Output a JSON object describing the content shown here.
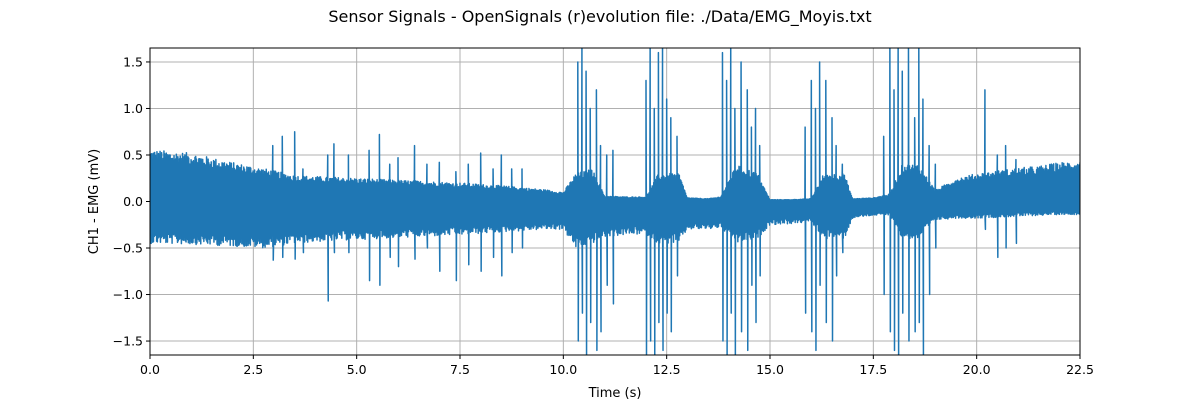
{
  "chart_data": {
    "type": "line",
    "title": "Sensor Signals - OpenSignals (r)evolution file: ./Data/EMG_Moyis.txt",
    "xlabel": "Time (s)",
    "ylabel": "CH1 - EMG (mV)",
    "xlim": [
      0.0,
      22.5
    ],
    "ylim": [
      -1.65,
      1.65
    ],
    "grid": true,
    "x_ticks": [
      0.0,
      2.5,
      5.0,
      7.5,
      10.0,
      12.5,
      15.0,
      17.5,
      20.0,
      22.5
    ],
    "x_tick_labels": [
      "0.0",
      "2.5",
      "5.0",
      "7.5",
      "10.0",
      "12.5",
      "15.0",
      "17.5",
      "20.0",
      "22.5"
    ],
    "y_ticks": [
      -1.5,
      -1.0,
      -0.5,
      0.0,
      0.5,
      1.0,
      1.5
    ],
    "y_tick_labels": [
      "−1.5",
      "−1.0",
      "−0.5",
      "0.0",
      "0.5",
      "1.0",
      "1.5"
    ],
    "series": [
      {
        "color": "#1f77b4",
        "envelope_time": [
          0.0,
          1.0,
          2.0,
          2.8,
          3.5,
          4.5,
          5.5,
          6.5,
          7.5,
          8.5,
          9.5,
          10.0,
          10.3,
          10.7,
          11.0,
          11.5,
          12.0,
          12.3,
          12.8,
          13.0,
          13.5,
          13.8,
          14.2,
          14.7,
          15.0,
          15.5,
          16.0,
          16.3,
          16.8,
          17.0,
          17.5,
          17.9,
          18.2,
          18.6,
          19.0,
          19.5,
          20.0,
          20.5,
          21.0,
          21.5,
          22.0,
          22.5
        ],
        "envelope_max": [
          0.56,
          0.52,
          0.42,
          0.35,
          0.28,
          0.26,
          0.24,
          0.22,
          0.2,
          0.17,
          0.13,
          0.1,
          0.3,
          0.35,
          0.06,
          0.05,
          0.05,
          0.3,
          0.3,
          0.04,
          0.03,
          0.05,
          0.4,
          0.3,
          0.02,
          0.02,
          0.03,
          0.3,
          0.3,
          0.03,
          0.04,
          0.08,
          0.4,
          0.4,
          0.12,
          0.25,
          0.3,
          0.33,
          0.36,
          0.38,
          0.42,
          0.44
        ],
        "envelope_min": [
          -0.45,
          -0.46,
          -0.48,
          -0.5,
          -0.45,
          -0.42,
          -0.4,
          -0.38,
          -0.36,
          -0.33,
          -0.3,
          -0.3,
          -0.5,
          -0.45,
          -0.38,
          -0.36,
          -0.35,
          -0.45,
          -0.45,
          -0.3,
          -0.3,
          -0.28,
          -0.45,
          -0.4,
          -0.25,
          -0.24,
          -0.22,
          -0.4,
          -0.4,
          -0.18,
          -0.15,
          -0.15,
          -0.4,
          -0.4,
          -0.2,
          -0.18,
          -0.18,
          -0.17,
          -0.16,
          -0.15,
          -0.14,
          -0.14
        ],
        "spikes": [
          [
            2.97,
            0.6,
            -0.63
          ],
          [
            3.2,
            0.7,
            -0.6
          ],
          [
            3.5,
            0.75,
            -0.62
          ],
          [
            3.7,
            0.35,
            -0.55
          ],
          [
            4.3,
            0.5,
            -1.07
          ],
          [
            4.45,
            0.62,
            -0.55
          ],
          [
            4.8,
            0.5,
            -0.55
          ],
          [
            5.3,
            0.55,
            -0.85
          ],
          [
            5.55,
            0.72,
            -0.9
          ],
          [
            5.8,
            0.4,
            -0.6
          ],
          [
            6.0,
            0.47,
            -0.7
          ],
          [
            6.4,
            0.6,
            -0.62
          ],
          [
            6.7,
            0.4,
            -0.5
          ],
          [
            7.0,
            0.42,
            -0.75
          ],
          [
            7.4,
            0.32,
            -0.85
          ],
          [
            7.7,
            0.4,
            -0.68
          ],
          [
            8.0,
            0.52,
            -0.75
          ],
          [
            8.3,
            0.35,
            -0.6
          ],
          [
            8.5,
            0.5,
            -0.8
          ],
          [
            8.75,
            0.35,
            -0.55
          ],
          [
            9.0,
            0.35,
            -0.5
          ],
          [
            10.35,
            1.5,
            -1.5
          ],
          [
            10.45,
            1.65,
            -1.2
          ],
          [
            10.55,
            1.4,
            -1.65
          ],
          [
            10.65,
            1.0,
            -1.3
          ],
          [
            10.8,
            1.2,
            -1.6
          ],
          [
            10.9,
            0.6,
            -1.4
          ],
          [
            11.05,
            0.5,
            -0.9
          ],
          [
            11.2,
            0.55,
            -1.1
          ],
          [
            12.0,
            1.3,
            -1.65
          ],
          [
            12.1,
            1.65,
            -1.5
          ],
          [
            12.2,
            1.0,
            -1.65
          ],
          [
            12.3,
            1.6,
            -1.3
          ],
          [
            12.4,
            1.65,
            -1.6
          ],
          [
            12.5,
            1.1,
            -1.2
          ],
          [
            12.6,
            0.9,
            -1.4
          ],
          [
            12.75,
            0.7,
            -0.8
          ],
          [
            13.85,
            1.6,
            -1.5
          ],
          [
            13.95,
            1.3,
            -1.65
          ],
          [
            14.05,
            1.65,
            -1.2
          ],
          [
            14.15,
            1.0,
            -1.65
          ],
          [
            14.3,
            1.5,
            -1.4
          ],
          [
            14.45,
            1.2,
            -1.6
          ],
          [
            14.55,
            0.8,
            -0.9
          ],
          [
            14.65,
            1.0,
            -1.3
          ],
          [
            14.75,
            0.6,
            -0.8
          ],
          [
            15.85,
            0.8,
            -1.2
          ],
          [
            16.0,
            1.3,
            -1.4
          ],
          [
            16.1,
            1.0,
            -1.6
          ],
          [
            16.2,
            1.5,
            -0.9
          ],
          [
            16.35,
            1.3,
            -1.3
          ],
          [
            16.5,
            0.9,
            -1.5
          ],
          [
            16.6,
            0.6,
            -0.8
          ],
          [
            16.75,
            0.4,
            -0.55
          ],
          [
            17.75,
            0.7,
            -1.0
          ],
          [
            17.9,
            1.65,
            -1.4
          ],
          [
            18.0,
            1.2,
            -1.6
          ],
          [
            18.1,
            1.65,
            -1.65
          ],
          [
            18.2,
            1.4,
            -1.2
          ],
          [
            18.35,
            1.65,
            -1.5
          ],
          [
            18.5,
            0.9,
            -1.4
          ],
          [
            18.6,
            1.65,
            -1.3
          ],
          [
            18.7,
            1.1,
            -1.65
          ],
          [
            18.85,
            0.6,
            -1.0
          ],
          [
            19.0,
            0.4,
            -0.5
          ],
          [
            20.2,
            1.2,
            -0.3
          ],
          [
            20.5,
            0.5,
            -0.6
          ],
          [
            20.7,
            0.6,
            -0.5
          ],
          [
            20.95,
            0.45,
            -0.45
          ]
        ]
      }
    ]
  }
}
